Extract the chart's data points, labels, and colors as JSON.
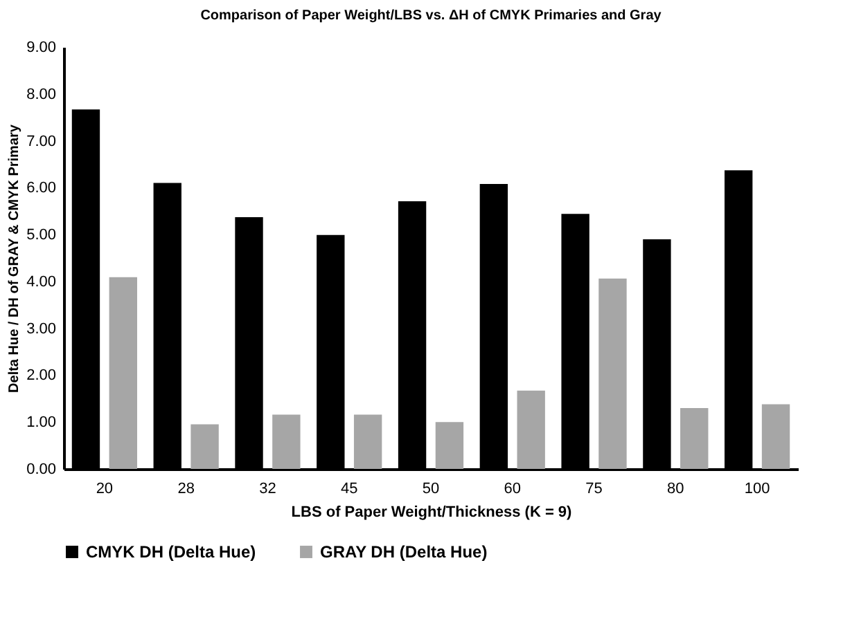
{
  "chart_data": {
    "type": "bar",
    "title": "Comparison of Paper Weight/LBS  vs. ΔH  of CMYK Primaries and Gray",
    "xlabel": "LBS  of Paper Weight/Thickness (K = 9)",
    "ylabel": "Delta  Hue / DH of  GRAY  &  CMYK Primary",
    "categories": [
      "20",
      "28",
      "32",
      "45",
      "50",
      "60",
      "75",
      "80",
      "100"
    ],
    "series": [
      {
        "name": "CMYK DH (Delta Hue)",
        "color": "#000000",
        "values": [
          7.67,
          6.1,
          5.37,
          4.99,
          5.71,
          6.08,
          5.44,
          4.9,
          6.37
        ]
      },
      {
        "name": "GRAY DH (Delta Hue)",
        "color": "#a6a6a6",
        "values": [
          4.09,
          0.95,
          1.16,
          1.16,
          1.0,
          1.67,
          4.06,
          1.3,
          1.38
        ]
      }
    ],
    "ylim": [
      0,
      9
    ],
    "yticks": [
      {
        "value": 0,
        "label": "0.00"
      },
      {
        "value": 1,
        "label": "1.00"
      },
      {
        "value": 2,
        "label": "2.00"
      },
      {
        "value": 3,
        "label": "3.00"
      },
      {
        "value": 4,
        "label": "4.00"
      },
      {
        "value": 5,
        "label": "5.00"
      },
      {
        "value": 6,
        "label": "6.00"
      },
      {
        "value": 7,
        "label": "7.00"
      },
      {
        "value": 8,
        "label": "8.00"
      },
      {
        "value": 9,
        "label": "9.00"
      }
    ],
    "grid": false,
    "legend": "bottom"
  }
}
